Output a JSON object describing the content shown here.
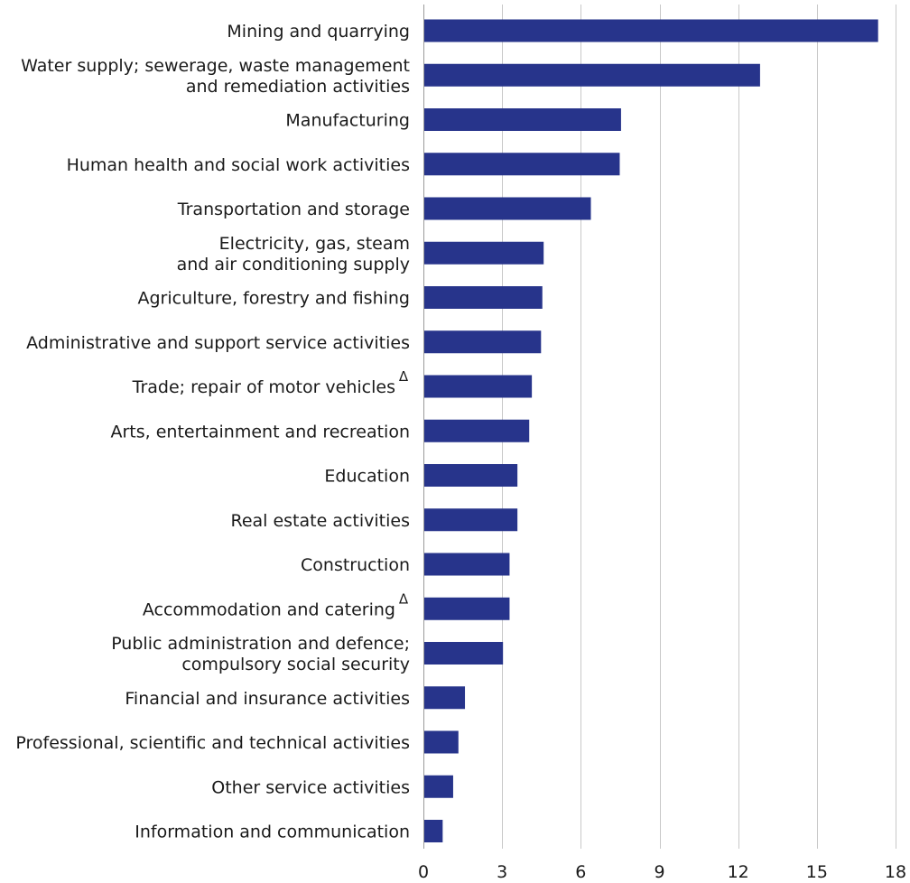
{
  "chart_data": {
    "type": "bar",
    "orientation": "horizontal",
    "title": "",
    "xlabel": "",
    "ylabel": "",
    "xlim": [
      0,
      18
    ],
    "ticks": [
      0,
      3,
      6,
      9,
      12,
      15,
      18
    ],
    "grid": true,
    "bar_color": "#27348b",
    "categories": [
      {
        "lines": [
          "Mining and quarrying"
        ],
        "marker": "",
        "value": 17.3
      },
      {
        "lines": [
          "Water supply; sewerage, waste management",
          "and remediation activities"
        ],
        "marker": "",
        "value": 12.8
      },
      {
        "lines": [
          "Manufacturing"
        ],
        "marker": "",
        "value": 7.5
      },
      {
        "lines": [
          "Human health and social work activities"
        ],
        "marker": "",
        "value": 7.45
      },
      {
        "lines": [
          "Transportation and storage"
        ],
        "marker": "",
        "value": 6.35
      },
      {
        "lines": [
          "Electricity, gas, steam",
          "and air conditioning supply"
        ],
        "marker": "",
        "value": 4.55
      },
      {
        "lines": [
          "Agriculture, forestry and fishing"
        ],
        "marker": "",
        "value": 4.5
      },
      {
        "lines": [
          "Administrative and support service activities"
        ],
        "marker": "",
        "value": 4.45
      },
      {
        "lines": [
          "Trade; repair of motor vehicles"
        ],
        "marker": "Δ",
        "value": 4.1
      },
      {
        "lines": [
          "Arts, entertainment and recreation"
        ],
        "marker": "",
        "value": 4.0
      },
      {
        "lines": [
          "Education"
        ],
        "marker": "",
        "value": 3.55
      },
      {
        "lines": [
          "Real estate activities"
        ],
        "marker": "",
        "value": 3.55
      },
      {
        "lines": [
          "Construction"
        ],
        "marker": "",
        "value": 3.25
      },
      {
        "lines": [
          "Accommodation and catering"
        ],
        "marker": "Δ",
        "value": 3.25
      },
      {
        "lines": [
          "Public administration and defence;",
          "compulsory social security"
        ],
        "marker": "",
        "value": 3.0
      },
      {
        "lines": [
          "Financial and insurance activities"
        ],
        "marker": "",
        "value": 1.55
      },
      {
        "lines": [
          "Professional, scientific and technical activities"
        ],
        "marker": "",
        "value": 1.3
      },
      {
        "lines": [
          "Other service activities"
        ],
        "marker": "",
        "value": 1.1
      },
      {
        "lines": [
          "Information and communication"
        ],
        "marker": "",
        "value": 0.7
      }
    ]
  }
}
